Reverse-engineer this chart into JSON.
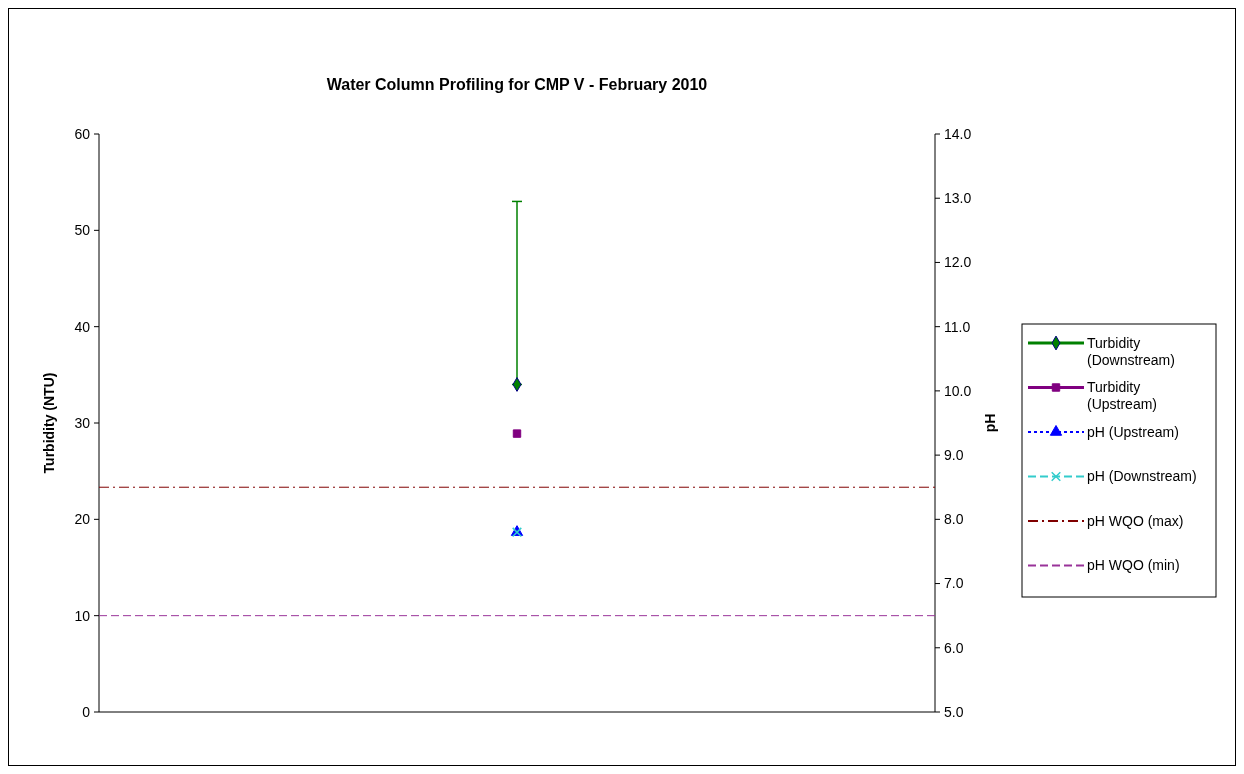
{
  "chart_data": {
    "type": "line",
    "title": "Water Column Profiling for CMP V - February 2010",
    "ylabel": "Turbidity (NTU)",
    "y2label": "pH",
    "categories": [
      null
    ],
    "ylim": [
      0,
      60
    ],
    "yticks": [
      0,
      10,
      20,
      30,
      40,
      50,
      60
    ],
    "y2lim": [
      5,
      14
    ],
    "y2ticks": [
      {
        "value": 5,
        "label": "5.0"
      },
      {
        "value": 6,
        "label": "6.0"
      },
      {
        "value": 7,
        "label": "7.0"
      },
      {
        "value": 8,
        "label": "8.0"
      },
      {
        "value": 9,
        "label": "9.0"
      },
      {
        "value": 10,
        "label": "10.0"
      },
      {
        "value": 11,
        "label": "11.0"
      },
      {
        "value": 12,
        "label": "12.0"
      },
      {
        "value": 13,
        "label": "13.0"
      },
      {
        "value": 14,
        "label": "14.0"
      }
    ],
    "legend": "right",
    "grid": false,
    "series": [
      {
        "name": "Turbidity (Downstream)",
        "color": "#008000",
        "values": [
          34
        ],
        "errors": [
          [
            34,
            53
          ]
        ],
        "marker": "diamond",
        "line_style": "solid"
      },
      {
        "name": "Turbidity (Upstream)",
        "color": "#800080",
        "values": [
          28.9
        ],
        "marker": "square",
        "line_style": "solid"
      },
      {
        "name": "pH (Upstream)",
        "color": "#0000ff",
        "values": [
          7.8
        ],
        "axis": "y2",
        "marker": "triangle",
        "line_style": "dotted"
      },
      {
        "name": "pH (Downstream)",
        "color": "#33cccc",
        "values": [
          7.8
        ],
        "axis": "y2",
        "marker": "cross",
        "line_style": "dashed"
      }
    ],
    "ref_lines": [
      {
        "axis": "y2",
        "value": 8.5,
        "label": "pH WQO (max)",
        "color": "#800000",
        "line_style": "dashdot"
      },
      {
        "axis": "y2",
        "value": 6.5,
        "label": "pH WQO (min)",
        "color": "#993399",
        "line_style": "dashed"
      }
    ]
  }
}
